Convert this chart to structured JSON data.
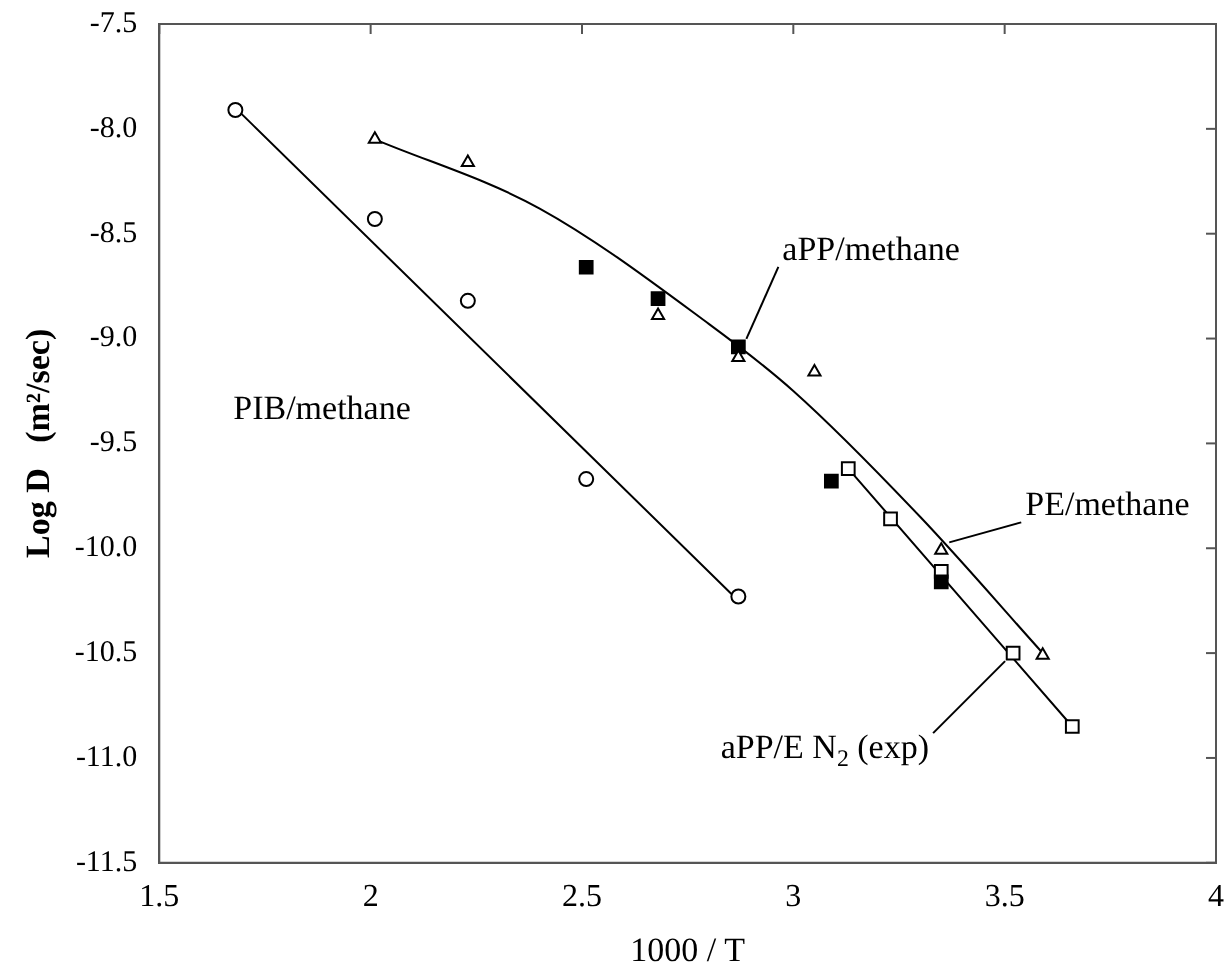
{
  "chart_data": {
    "type": "scatter",
    "xlabel": "1000 / T",
    "ylabel": "Log D   (m²/sec)",
    "xlim": [
      1.5,
      4
    ],
    "xticks": [
      1.5,
      2,
      2.5,
      3,
      3.5,
      4
    ],
    "ylim": [
      -11.5,
      -7.5
    ],
    "yticks": [
      {
        "value": -11.5,
        "label": "-11.5"
      },
      {
        "value": -11,
        "label": "-11.0"
      },
      {
        "value": -10.5,
        "label": "-10.5"
      },
      {
        "value": -10,
        "label": "-10.0"
      },
      {
        "value": -9.5,
        "label": "-9.5"
      },
      {
        "value": -9,
        "label": "-9.0"
      },
      {
        "value": -8.5,
        "label": "-8.5"
      },
      {
        "value": -8,
        "label": "-8.0"
      },
      {
        "value": -7.5,
        "label": "-7.5"
      }
    ],
    "grid": false,
    "legend": false,
    "series": [
      {
        "name": "PIB/methane",
        "color": "#ffffff",
        "marker": "circle",
        "x": [
          1.68,
          2.01,
          2.23,
          2.51,
          2.87
        ],
        "values": [
          -7.91,
          -8.43,
          -8.82,
          -9.67,
          -10.23
        ]
      },
      {
        "name": "PE/methane",
        "color": "#ffffff",
        "marker": "triangle",
        "x": [
          2.01,
          2.23,
          2.68,
          2.87,
          3.05,
          3.35,
          3.59
        ],
        "values": [
          -8.05,
          -8.16,
          -8.89,
          -9.09,
          -9.16,
          -10.01,
          -10.51
        ]
      },
      {
        "name": "aPP/methane",
        "color": "#000000",
        "marker": "square",
        "x": [
          2.51,
          2.68,
          2.87,
          3.09,
          3.35
        ],
        "values": [
          -8.66,
          -8.81,
          -9.04,
          -9.68,
          -10.16
        ]
      },
      {
        "name": "aPP/E N$_{2}$ (exp)",
        "color": "#ffffff",
        "marker": "square",
        "x": [
          3.13,
          3.23,
          3.35,
          3.52,
          3.66
        ],
        "values": [
          -9.62,
          -9.86,
          -10.11,
          -10.5,
          -10.85
        ]
      },
      {
        "type": "line",
        "color": "#000000",
        "marker": "none",
        "x": [
          1.68,
          2.87
        ],
        "values": [
          -7.9,
          -10.25
        ]
      },
      {
        "type": "line",
        "color": "#000000",
        "marker": "none",
        "x": [
          2.01,
          2.4,
          2.8,
          3.0,
          3.3,
          3.59
        ],
        "values": [
          -8.05,
          -8.38,
          -8.93,
          -9.25,
          -9.85,
          -10.5
        ]
      },
      {
        "type": "line",
        "color": "#000000",
        "marker": "none",
        "x": [
          3.13,
          3.66
        ],
        "values": [
          -9.62,
          -10.85
        ]
      }
    ]
  }
}
